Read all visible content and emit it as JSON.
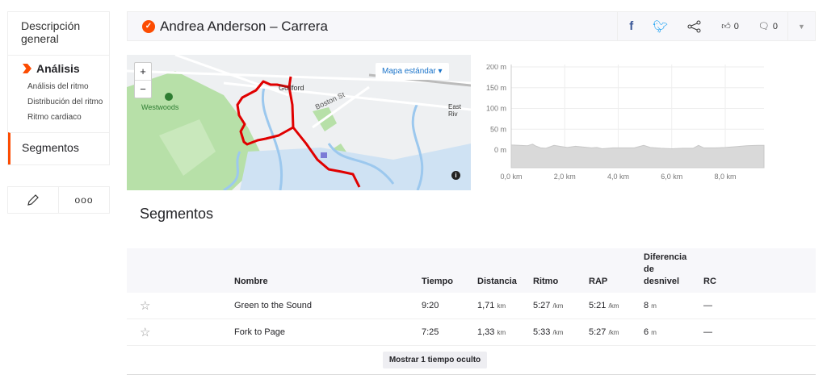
{
  "sidebar": {
    "overview": "Descripción general",
    "analysis": "Análisis",
    "subitems": [
      "Análisis del ritmo",
      "Distribución del ritmo",
      "Ritmo cardiaco"
    ],
    "segments": "Segmentos",
    "more": "ooo"
  },
  "header": {
    "title": "Andrea Anderson – Carrera",
    "kudos": "0",
    "comments": "0"
  },
  "map": {
    "type_label": "Mapa estándar",
    "labels": {
      "town": "Guilford",
      "park": "Westwoods",
      "street": "Boston St",
      "river": "East Riv"
    }
  },
  "chart_data": {
    "type": "area",
    "title": "",
    "xlabel": "",
    "ylabel": "",
    "x_ticks": [
      "0,0 km",
      "2,0 km",
      "4,0 km",
      "6,0 km",
      "8,0 km"
    ],
    "y_ticks": [
      "0 m",
      "50 m",
      "100 m",
      "150 m",
      "200 m"
    ],
    "xlim": [
      0,
      9.45
    ],
    "ylim": [
      -20,
      220
    ],
    "grid": true,
    "x": [
      0,
      0.3,
      0.6,
      0.8,
      0.9,
      1.1,
      1.3,
      1.6,
      1.8,
      2.1,
      2.4,
      2.7,
      3.0,
      3.2,
      3.4,
      3.8,
      4.2,
      4.6,
      4.95,
      5.2,
      5.6,
      6.0,
      6.4,
      6.8,
      7.0,
      7.2,
      7.6,
      8.0,
      8.4,
      8.8,
      9.2,
      9.45
    ],
    "y": [
      12,
      11,
      10,
      14,
      10,
      5,
      4,
      11,
      9,
      6,
      9,
      7,
      5,
      6,
      3,
      5,
      5,
      5,
      11,
      6,
      4,
      3,
      4,
      4,
      11,
      5,
      5,
      6,
      8,
      10,
      11,
      11
    ]
  },
  "segments": {
    "title": "Segmentos",
    "columns": [
      "Nombre",
      "Tiempo",
      "Distancia",
      "Ritmo",
      "RAP",
      "Diferencia de desnivel",
      "RC"
    ],
    "rows": [
      {
        "name": "Green to the Sound",
        "time": "9:20",
        "distance": "1,71",
        "dist_unit": "km",
        "pace": "5:27",
        "pace_unit": "/km",
        "gap": "5:21",
        "gap_unit": "/km",
        "elev": "8",
        "elev_unit": "m",
        "hr": "—"
      },
      {
        "name": "Fork to Page",
        "time": "7:25",
        "distance": "1,33",
        "dist_unit": "km",
        "pace": "5:33",
        "pace_unit": "/km",
        "gap": "5:27",
        "gap_unit": "/km",
        "elev": "6",
        "elev_unit": "m",
        "hr": "—"
      }
    ],
    "show_hidden": "Mostrar 1 tiempo oculto"
  },
  "colors": {
    "accent": "#fc4c02",
    "route": "#e00000",
    "facebook": "#3b5998",
    "twitter": "#1da1f2"
  }
}
